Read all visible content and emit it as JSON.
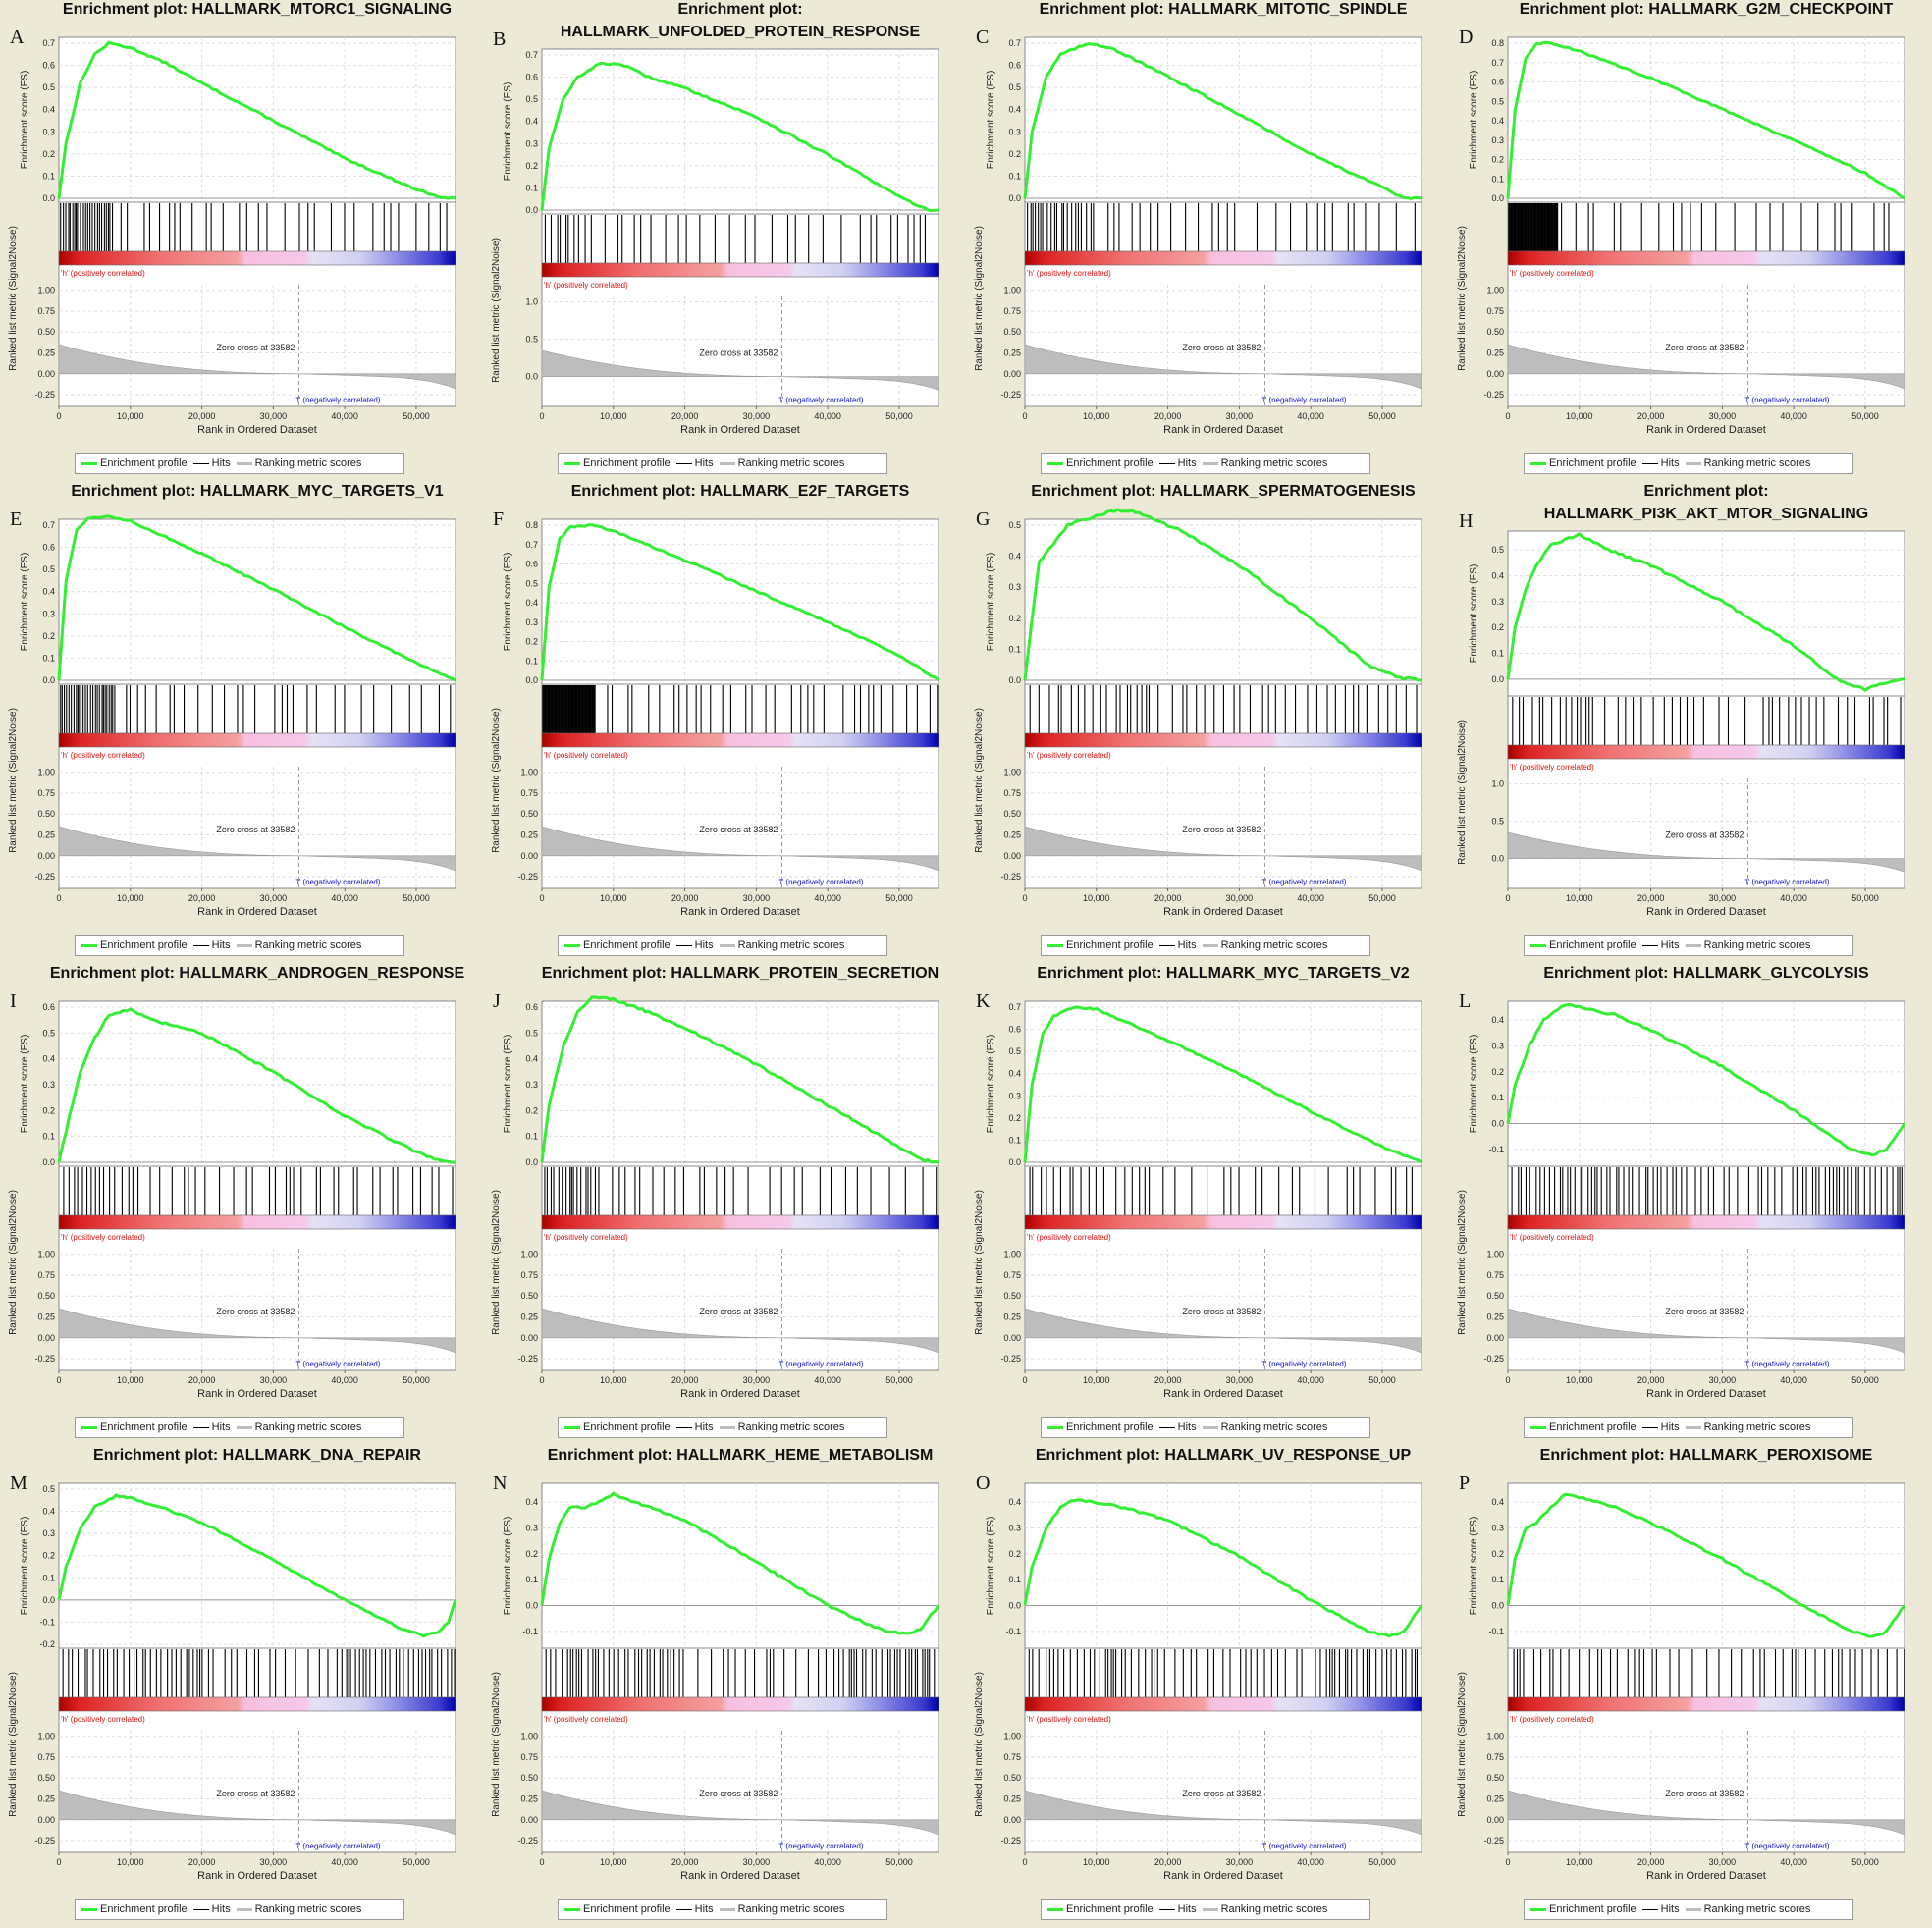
{
  "common": {
    "x_ticks": [
      0,
      10000,
      20000,
      30000,
      40000,
      50000
    ],
    "x_tick_labels": [
      "0",
      "10,000",
      "20,000",
      "30,000",
      "40,000",
      "50,000"
    ],
    "x_max": 55500,
    "xlabel": "Rank in Ordered Dataset",
    "ylabel_es": "Enrichment score (ES)",
    "ylabel_metric": "Ranked list metric (Signal2Noise)",
    "pos_label": "'h' (positively correlated)",
    "neg_label": "'l' (negatively correlated)",
    "zero_cross": "Zero cross at 33582",
    "zero_cross_rank": 33582,
    "metric_ticks": [
      "1.00",
      "0.75",
      "0.50",
      "0.25",
      "0.00",
      "-0.25"
    ],
    "metric_ticks_alt": [
      "1.0",
      "0.5",
      "0.0"
    ],
    "legend": {
      "profile": "Enrichment profile",
      "hits": "Hits",
      "metric": "Ranking metric scores"
    },
    "colors": {
      "profile": "#33ee33",
      "background": "#ecead7",
      "pos": "#dd1111",
      "neg": "#1111cc"
    }
  },
  "chart_data": [
    {
      "letter": "A",
      "title": [
        "Enrichment plot: HALLMARK_MTORC1_SIGNALING"
      ],
      "type": "line",
      "ylim": [
        0,
        0.7
      ],
      "yticks": [
        0.0,
        0.1,
        0.2,
        0.3,
        0.4,
        0.5,
        0.6,
        0.7
      ],
      "x": [
        0,
        1000,
        3000,
        5000,
        7000,
        10000,
        15000,
        20000,
        30000,
        40000,
        50000,
        54000,
        55500
      ],
      "y": [
        0,
        0.25,
        0.52,
        0.65,
        0.7,
        0.68,
        0.61,
        0.52,
        0.35,
        0.18,
        0.04,
        0.0,
        0.0
      ],
      "hits": [
        [
          0,
          7500,
          0.9
        ],
        [
          7500,
          30000,
          0.25
        ],
        [
          30000,
          55500,
          0.18
        ]
      ]
    },
    {
      "letter": "B",
      "title": [
        "Enrichment plot:",
        "HALLMARK_UNFOLDED_PROTEIN_RESPONSE"
      ],
      "type": "line",
      "ylim": [
        0,
        0.7
      ],
      "yticks": [
        0.0,
        0.1,
        0.2,
        0.3,
        0.4,
        0.5,
        0.6,
        0.7
      ],
      "metric_alt": true,
      "x": [
        0,
        1000,
        3000,
        5000,
        8000,
        11000,
        15000,
        20000,
        30000,
        40000,
        50000,
        54000,
        55500
      ],
      "y": [
        0,
        0.28,
        0.5,
        0.6,
        0.66,
        0.66,
        0.6,
        0.55,
        0.42,
        0.25,
        0.06,
        0.0,
        0.0
      ],
      "hits": [
        [
          0,
          7000,
          0.7
        ],
        [
          7000,
          30000,
          0.3
        ],
        [
          30000,
          55500,
          0.15
        ]
      ]
    },
    {
      "letter": "C",
      "title": [
        "Enrichment plot: HALLMARK_MITOTIC_SPINDLE"
      ],
      "type": "line",
      "ylim": [
        0,
        0.7
      ],
      "yticks": [
        0.0,
        0.1,
        0.2,
        0.3,
        0.4,
        0.5,
        0.6,
        0.7
      ],
      "x": [
        0,
        1000,
        3000,
        5000,
        9000,
        12000,
        20000,
        30000,
        40000,
        50000,
        53000,
        55500
      ],
      "y": [
        0,
        0.3,
        0.55,
        0.65,
        0.7,
        0.68,
        0.55,
        0.38,
        0.2,
        0.05,
        0.0,
        0.0
      ],
      "hits": [
        [
          0,
          10000,
          0.8
        ],
        [
          10000,
          30000,
          0.3
        ],
        [
          30000,
          55500,
          0.15
        ]
      ]
    },
    {
      "letter": "D",
      "title": [
        "Enrichment plot: HALLMARK_G2M_CHECKPOINT"
      ],
      "type": "line",
      "ylim": [
        0,
        0.8
      ],
      "yticks": [
        0.0,
        0.1,
        0.2,
        0.3,
        0.4,
        0.5,
        0.6,
        0.7,
        0.8
      ],
      "x": [
        0,
        1000,
        2500,
        4000,
        6000,
        10000,
        20000,
        30000,
        40000,
        50000,
        55500
      ],
      "y": [
        0,
        0.45,
        0.72,
        0.8,
        0.8,
        0.76,
        0.62,
        0.46,
        0.3,
        0.13,
        0.0
      ],
      "hits": [
        [
          0,
          7000,
          1.0
        ],
        [
          7000,
          12000,
          0.3
        ],
        [
          12000,
          55500,
          0.04
        ]
      ]
    },
    {
      "letter": "E",
      "title": [
        "Enrichment plot: HALLMARK_MYC_TARGETS_V1"
      ],
      "type": "line",
      "ylim": [
        0,
        0.7
      ],
      "yticks": [
        0.0,
        0.1,
        0.2,
        0.3,
        0.4,
        0.5,
        0.6,
        0.7
      ],
      "x": [
        0,
        1000,
        2500,
        4000,
        7000,
        10000,
        20000,
        30000,
        40000,
        50000,
        55500
      ],
      "y": [
        0,
        0.45,
        0.68,
        0.73,
        0.74,
        0.72,
        0.57,
        0.41,
        0.24,
        0.08,
        0.0
      ],
      "hits": [
        [
          0,
          8000,
          0.9
        ],
        [
          8000,
          28000,
          0.3
        ],
        [
          28000,
          55500,
          0.12
        ]
      ]
    },
    {
      "letter": "F",
      "title": [
        "Enrichment plot: HALLMARK_E2F_TARGETS"
      ],
      "type": "line",
      "ylim": [
        0,
        0.8
      ],
      "yticks": [
        0.0,
        0.1,
        0.2,
        0.3,
        0.4,
        0.5,
        0.6,
        0.7,
        0.8
      ],
      "x": [
        0,
        1000,
        2500,
        4000,
        7000,
        10000,
        20000,
        30000,
        40000,
        50000,
        55500
      ],
      "y": [
        0,
        0.48,
        0.73,
        0.79,
        0.8,
        0.77,
        0.62,
        0.46,
        0.3,
        0.13,
        0.0
      ],
      "hits": [
        [
          0,
          7500,
          1.0
        ],
        [
          7500,
          30000,
          0.25
        ],
        [
          30000,
          55500,
          0.12
        ]
      ]
    },
    {
      "letter": "G",
      "title": [
        "Enrichment plot: HALLMARK_SPERMATOGENESIS"
      ],
      "type": "line",
      "ylim": [
        0,
        0.5
      ],
      "yticks": [
        0.0,
        0.1,
        0.2,
        0.3,
        0.4,
        0.5
      ],
      "x": [
        0,
        1000,
        2000,
        4000,
        6000,
        10000,
        13000,
        16000,
        22000,
        30000,
        40000,
        48000,
        52000,
        55500
      ],
      "y": [
        0,
        0.2,
        0.38,
        0.44,
        0.5,
        0.53,
        0.55,
        0.54,
        0.48,
        0.37,
        0.2,
        0.05,
        0.01,
        0.0
      ],
      "hits": [
        [
          0,
          20000,
          0.55
        ],
        [
          20000,
          40000,
          0.45
        ],
        [
          40000,
          55500,
          0.5
        ]
      ]
    },
    {
      "letter": "H",
      "title": [
        "Enrichment plot:",
        "HALLMARK_PI3K_AKT_MTOR_SIGNALING"
      ],
      "type": "line",
      "ylim": [
        -0.05,
        0.55
      ],
      "yticks": [
        0.0,
        0.1,
        0.2,
        0.3,
        0.4,
        0.5
      ],
      "metric_alt": true,
      "x": [
        0,
        1000,
        2500,
        4000,
        6000,
        9000,
        10000,
        14000,
        20000,
        30000,
        40000,
        46000,
        50000,
        52000,
        55500
      ],
      "y": [
        0,
        0.2,
        0.35,
        0.44,
        0.52,
        0.55,
        0.56,
        0.5,
        0.44,
        0.3,
        0.13,
        0.0,
        -0.04,
        -0.02,
        0.0
      ],
      "hits": [
        [
          0,
          13000,
          0.6
        ],
        [
          13000,
          35000,
          0.25
        ],
        [
          35000,
          55500,
          0.35
        ]
      ]
    },
    {
      "letter": "I",
      "title": [
        "Enrichment plot: HALLMARK_ANDROGEN_RESPONSE"
      ],
      "type": "line",
      "ylim": [
        0,
        0.6
      ],
      "yticks": [
        0.0,
        0.1,
        0.2,
        0.3,
        0.4,
        0.5,
        0.6
      ],
      "x": [
        0,
        1500,
        3000,
        5000,
        7000,
        10000,
        13000,
        20000,
        30000,
        40000,
        50000,
        53000,
        55500
      ],
      "y": [
        0,
        0.18,
        0.35,
        0.48,
        0.57,
        0.59,
        0.55,
        0.5,
        0.35,
        0.18,
        0.04,
        0.01,
        0.0
      ],
      "hits": [
        [
          0,
          12000,
          0.6
        ],
        [
          12000,
          28000,
          0.35
        ],
        [
          28000,
          55500,
          0.3
        ]
      ]
    },
    {
      "letter": "J",
      "title": [
        "Enrichment plot: HALLMARK_PROTEIN_SECRETION"
      ],
      "type": "line",
      "ylim": [
        0,
        0.6
      ],
      "yticks": [
        0.0,
        0.1,
        0.2,
        0.3,
        0.4,
        0.5,
        0.6
      ],
      "x": [
        0,
        1000,
        3000,
        5000,
        7000,
        10000,
        15000,
        20000,
        30000,
        40000,
        50000,
        53000,
        55500
      ],
      "y": [
        0,
        0.22,
        0.45,
        0.58,
        0.64,
        0.63,
        0.58,
        0.52,
        0.38,
        0.22,
        0.06,
        0.01,
        0.0
      ],
      "hits": [
        [
          0,
          8000,
          0.8
        ],
        [
          8000,
          30000,
          0.3
        ],
        [
          30000,
          55500,
          0.18
        ]
      ]
    },
    {
      "letter": "K",
      "title": [
        "Enrichment plot: HALLMARK_MYC_TARGETS_V2"
      ],
      "type": "line",
      "ylim": [
        0,
        0.7
      ],
      "yticks": [
        0.0,
        0.1,
        0.2,
        0.3,
        0.4,
        0.5,
        0.6,
        0.7
      ],
      "x": [
        0,
        1000,
        2500,
        4000,
        7000,
        10000,
        15000,
        20000,
        30000,
        40000,
        50000,
        55500
      ],
      "y": [
        0,
        0.35,
        0.58,
        0.66,
        0.7,
        0.69,
        0.62,
        0.55,
        0.4,
        0.23,
        0.07,
        0.0
      ],
      "hits": [
        [
          0,
          10000,
          0.6
        ],
        [
          10000,
          30000,
          0.25
        ],
        [
          30000,
          55500,
          0.15
        ]
      ]
    },
    {
      "letter": "L",
      "title": [
        "Enrichment plot: HALLMARK_GLYCOLYSIS"
      ],
      "type": "line",
      "ylim": [
        -0.15,
        0.45
      ],
      "yticks": [
        -0.1,
        0.0,
        0.1,
        0.2,
        0.3,
        0.4
      ],
      "x": [
        0,
        1000,
        3000,
        5000,
        8000,
        10000,
        15000,
        20000,
        30000,
        40000,
        48000,
        51000,
        53000,
        55500
      ],
      "y": [
        0,
        0.15,
        0.3,
        0.4,
        0.46,
        0.45,
        0.42,
        0.36,
        0.22,
        0.05,
        -0.1,
        -0.12,
        -0.1,
        0.0
      ],
      "hits": [
        [
          0,
          25000,
          0.7
        ],
        [
          25000,
          40000,
          0.5
        ],
        [
          40000,
          55500,
          0.75
        ]
      ]
    },
    {
      "letter": "M",
      "title": [
        "Enrichment plot: HALLMARK_DNA_REPAIR"
      ],
      "type": "line",
      "ylim": [
        -0.2,
        0.5
      ],
      "yticks": [
        -0.2,
        -0.1,
        0.0,
        0.1,
        0.2,
        0.3,
        0.4,
        0.5
      ],
      "x": [
        0,
        1000,
        3000,
        5000,
        8000,
        10000,
        15000,
        20000,
        30000,
        40000,
        48000,
        51000,
        53000,
        54500,
        55500
      ],
      "y": [
        0,
        0.15,
        0.32,
        0.42,
        0.47,
        0.46,
        0.41,
        0.35,
        0.18,
        0.0,
        -0.13,
        -0.16,
        -0.15,
        -0.1,
        0.0
      ],
      "hits": [
        [
          0,
          22000,
          0.7
        ],
        [
          22000,
          40000,
          0.45
        ],
        [
          40000,
          55500,
          0.75
        ]
      ]
    },
    {
      "letter": "N",
      "title": [
        "Enrichment plot: HALLMARK_HEME_METABOLISM"
      ],
      "type": "line",
      "ylim": [
        -0.15,
        0.45
      ],
      "yticks": [
        -0.1,
        0.0,
        0.1,
        0.2,
        0.3,
        0.4
      ],
      "x": [
        0,
        1000,
        2500,
        4000,
        6000,
        8000,
        10000,
        13000,
        20000,
        30000,
        40000,
        48000,
        51000,
        53000,
        55500
      ],
      "y": [
        0,
        0.18,
        0.32,
        0.38,
        0.38,
        0.4,
        0.43,
        0.4,
        0.33,
        0.17,
        0.0,
        -0.1,
        -0.11,
        -0.09,
        0.0
      ],
      "hits": [
        [
          0,
          20000,
          0.7
        ],
        [
          20000,
          40000,
          0.4
        ],
        [
          40000,
          55500,
          0.75
        ]
      ]
    },
    {
      "letter": "O",
      "title": [
        "Enrichment plot: HALLMARK_UV_RESPONSE_UP"
      ],
      "type": "line",
      "ylim": [
        -0.15,
        0.45
      ],
      "yticks": [
        -0.1,
        0.0,
        0.1,
        0.2,
        0.3,
        0.4
      ],
      "x": [
        0,
        1000,
        3000,
        5000,
        7000,
        10000,
        15000,
        20000,
        30000,
        40000,
        48000,
        51000,
        53000,
        55500
      ],
      "y": [
        0,
        0.15,
        0.3,
        0.38,
        0.41,
        0.4,
        0.37,
        0.33,
        0.19,
        0.02,
        -0.1,
        -0.12,
        -0.1,
        0.0
      ],
      "hits": [
        [
          0,
          20000,
          0.7
        ],
        [
          20000,
          40000,
          0.4
        ],
        [
          40000,
          55500,
          0.75
        ]
      ]
    },
    {
      "letter": "P",
      "title": [
        "Enrichment plot: HALLMARK_PEROXISOME"
      ],
      "type": "line",
      "ylim": [
        -0.15,
        0.45
      ],
      "yticks": [
        -0.1,
        0.0,
        0.1,
        0.2,
        0.3,
        0.4
      ],
      "x": [
        0,
        1000,
        2500,
        4000,
        6000,
        8000,
        10000,
        15000,
        20000,
        30000,
        40000,
        48000,
        51000,
        53000,
        55500
      ],
      "y": [
        0,
        0.18,
        0.3,
        0.32,
        0.38,
        0.43,
        0.42,
        0.38,
        0.32,
        0.18,
        0.02,
        -0.1,
        -0.12,
        -0.1,
        0.0
      ],
      "hits": [
        [
          0,
          22000,
          0.55
        ],
        [
          22000,
          38000,
          0.3
        ],
        [
          38000,
          55500,
          0.6
        ]
      ]
    }
  ]
}
